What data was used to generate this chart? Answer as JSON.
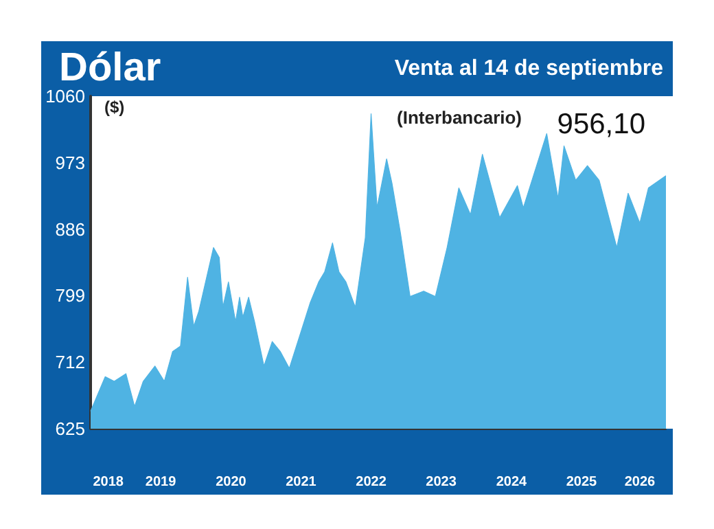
{
  "chart_data": {
    "type": "area",
    "title": "Dólar",
    "subtitle": "(Interbancario)",
    "ylabel": "($)",
    "annotations": [
      "Venta al 14 de septiembre",
      "956,10"
    ],
    "x": [
      "2018-07-01",
      "2018-09-15",
      "2018-11-01",
      "2019-01-01",
      "2019-02-15",
      "2019-04-01",
      "2019-06-01",
      "2019-07-20",
      "2019-09-01",
      "2019-10-12",
      "2019-11-18",
      "2019-12-20",
      "2020-01-15",
      "2020-04-01",
      "2020-05-01",
      "2020-05-20",
      "2020-06-18",
      "2020-07-25",
      "2020-08-15",
      "2020-09-01",
      "2020-10-01",
      "2020-11-01",
      "2020-12-20",
      "2021-02-01",
      "2021-03-15",
      "2021-05-01",
      "2021-07-01",
      "2021-08-18",
      "2021-10-01",
      "2021-11-01",
      "2021-12-12",
      "2022-01-15",
      "2022-02-20",
      "2022-04-10",
      "2022-06-01",
      "2022-07-01",
      "2022-08-01",
      "2022-09-20",
      "2022-10-18",
      "2022-12-01",
      "2023-01-20",
      "2023-04-01",
      "2023-06-01",
      "2023-08-01",
      "2023-10-01",
      "2023-12-01",
      "2024-02-01",
      "2024-05-01",
      "2024-08-01",
      "2024-09-01",
      "2025-01-01",
      "2025-03-01",
      "2025-04-01",
      "2025-06-01",
      "2025-08-01",
      "2025-10-01",
      "2026-01-01",
      "2026-03-01",
      "2026-05-01",
      "2026-06-15",
      "2026-09-14"
    ],
    "series": [
      {
        "color": "#4fb3e3",
        "values": [
          648,
          693,
          687,
          697,
          654,
          687,
          707,
          687,
          726,
          733,
          823,
          759,
          778,
          862,
          849,
          784,
          817,
          765,
          797,
          771,
          797,
          765,
          707,
          739,
          726,
          704,
          752,
          790,
          817,
          830,
          868,
          830,
          817,
          784,
          875,
          1037,
          914,
          978,
          946,
          881,
          798,
          805,
          798,
          862,
          940,
          905,
          984,
          901,
          943,
          914,
          1011,
          926,
          995,
          950,
          969,
          950,
          862,
          933,
          894,
          940,
          956
        ]
      }
    ],
    "xlim": [
      "2018-07-01",
      "2026-09-14"
    ],
    "xticks": [
      {
        "value": "2018-10-01",
        "label": "2018"
      },
      {
        "value": "2019-07-01",
        "label": "2019"
      },
      {
        "value": "2020-07-01",
        "label": "2020"
      },
      {
        "value": "2021-07-01",
        "label": "2021"
      },
      {
        "value": "2022-07-01",
        "label": "2022"
      },
      {
        "value": "2023-07-01",
        "label": "2023"
      },
      {
        "value": "2024-07-01",
        "label": "2024"
      },
      {
        "value": "2025-07-01",
        "label": "2025"
      },
      {
        "value": "2026-05-01",
        "label": "2026"
      }
    ],
    "ylim": [
      625,
      1060
    ],
    "yticks": [
      625,
      712,
      799,
      886,
      973,
      1060
    ]
  }
}
